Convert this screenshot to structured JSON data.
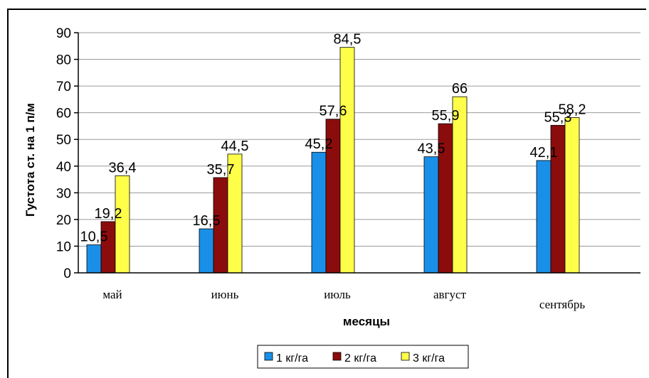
{
  "chart_data": {
    "type": "bar",
    "categories": [
      "май",
      "июнь",
      "июль",
      "август",
      "сентябрь"
    ],
    "series": [
      {
        "name": "1 кг/га",
        "color": "#1a8fe8",
        "values": [
          10.5,
          16.5,
          45.2,
          43.5,
          42.1
        ],
        "labels": [
          "10,5",
          "16,5",
          "45,2",
          "43,5",
          "42,1"
        ]
      },
      {
        "name": "2 кг/га",
        "color": "#8b0c0c",
        "values": [
          19.2,
          35.7,
          57.6,
          55.9,
          55.3
        ],
        "labels": [
          "19,2",
          "35,7",
          "57,6",
          "55,9",
          "55,3"
        ]
      },
      {
        "name": "3 кг/га",
        "color": "#ffff4a",
        "values": [
          36.4,
          44.5,
          84.5,
          66,
          58.2
        ],
        "labels": [
          "36,4",
          "44,5",
          "84,5",
          "66",
          "58,2"
        ]
      }
    ],
    "xlabel": "месяцы",
    "ylabel": "Густота ст. на 1 п/м",
    "ylim": [
      0,
      90
    ],
    "yticks": [
      0,
      10,
      20,
      30,
      40,
      50,
      60,
      70,
      80,
      90
    ],
    "grid": true,
    "legend": "bottom"
  }
}
